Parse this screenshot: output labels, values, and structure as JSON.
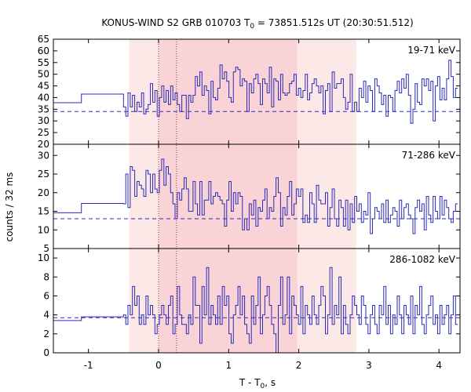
{
  "chart_data": {
    "type": "line",
    "title": {
      "prefix": "KONUS-WIND S2 GRB 010703 T",
      "sub": "0",
      "suffix": " = 73851.512s UT (20:30:51.512)"
    },
    "xlabel": {
      "prefix": "T - T",
      "sub": "0",
      "suffix": ", s"
    },
    "ylabel": "counts / 32 ms",
    "xlim": [
      -1.5,
      4.3
    ],
    "xticks": [
      -1,
      0,
      1,
      2,
      3,
      4
    ],
    "xtick_labels": [
      "-1",
      "0",
      "1",
      "2",
      "3",
      "4"
    ],
    "shaded_intervals": [
      {
        "x0": -0.42,
        "x1": 2.82,
        "color": "#fde8e8"
      },
      {
        "x0": 0.0,
        "x1": 1.98,
        "color": "#f9d3d6"
      }
    ],
    "vlines": [
      0.0,
      0.256
    ],
    "colors": {
      "series": "#2b2bb8",
      "background_line": "#2b2bb8",
      "vline": "#a04040"
    },
    "panels": [
      {
        "label": "19-71 keV",
        "ylim": [
          20,
          65
        ],
        "yticks": [
          20,
          25,
          30,
          35,
          40,
          45,
          50,
          55,
          60,
          65
        ],
        "background": 34,
        "preburst": [
          {
            "x0": -1.5,
            "x1": -1.1,
            "y": 37.8
          },
          {
            "x0": -1.1,
            "x1": -0.5,
            "y": 41.5
          }
        ],
        "bin": 0.032,
        "t_start": -0.5,
        "values": [
          36,
          32,
          42,
          36,
          41,
          34,
          38,
          36,
          42,
          33,
          35,
          37,
          46,
          38,
          43,
          32,
          40,
          45,
          38,
          43,
          37,
          45,
          39,
          42,
          37,
          34,
          41,
          41,
          31,
          41,
          38,
          41,
          49,
          45,
          51,
          41,
          45,
          43,
          33,
          47,
          40,
          39,
          44,
          54,
          48,
          51,
          47,
          40,
          38,
          51,
          53,
          52,
          45,
          48,
          47,
          34,
          46,
          42,
          48,
          50,
          46,
          37,
          48,
          46,
          42,
          53,
          36,
          48,
          47,
          39,
          50,
          42,
          41,
          42,
          46,
          47,
          50,
          41,
          44,
          40,
          43,
          50,
          39,
          42,
          46,
          48,
          45,
          42,
          45,
          33,
          43,
          46,
          34,
          51,
          44,
          46,
          46,
          48,
          40,
          35,
          38,
          50,
          34,
          38,
          34,
          44,
          40,
          47,
          38,
          45,
          43,
          34,
          48,
          45,
          42,
          37,
          41,
          32,
          41,
          40,
          34,
          43,
          47,
          42,
          48,
          44,
          50,
          41,
          29,
          35,
          46,
          38,
          37,
          48,
          45,
          48,
          43,
          47,
          30,
          45,
          49,
          39,
          44,
          39,
          48,
          56,
          49,
          40,
          44
        ]
      },
      {
        "label": "71-286 keV",
        "ylim": [
          5,
          33
        ],
        "yticks": [
          5,
          10,
          15,
          20,
          25,
          30
        ],
        "background": 13,
        "preburst": [
          {
            "x0": -1.5,
            "x1": -1.1,
            "y": 14.6
          },
          {
            "x0": -1.1,
            "x1": -0.5,
            "y": 17.1
          }
        ],
        "bin": 0.032,
        "t_start": -0.5,
        "values": [
          17,
          25,
          16,
          27,
          26,
          19,
          23,
          22,
          21,
          19,
          26,
          25,
          20,
          25,
          21,
          20,
          26,
          29,
          22,
          27,
          25,
          20,
          17,
          13,
          20,
          18,
          21,
          24,
          21,
          15,
          15,
          23,
          17,
          14,
          23,
          14,
          18,
          18,
          23,
          17,
          19,
          20,
          19,
          18,
          17,
          11,
          18,
          23,
          15,
          20,
          17,
          20,
          19,
          10,
          13,
          10,
          17,
          14,
          18,
          11,
          16,
          15,
          18,
          21,
          13,
          16,
          15,
          19,
          24,
          20,
          11,
          16,
          14,
          19,
          23,
          14,
          17,
          21,
          19,
          21,
          12,
          14,
          12,
          20,
          17,
          12,
          22,
          18,
          17,
          17,
          20,
          11,
          16,
          21,
          13,
          11,
          18,
          16,
          11,
          18,
          10,
          17,
          12,
          19,
          15,
          17,
          12,
          15,
          14,
          20,
          9,
          13,
          16,
          15,
          13,
          17,
          12,
          18,
          12,
          14,
          16,
          15,
          11,
          18,
          13,
          16,
          17,
          14,
          13,
          9,
          16,
          18,
          15,
          17,
          10,
          19,
          14,
          12,
          19,
          15,
          13,
          19,
          14,
          18,
          16,
          13,
          12,
          15,
          17
        ]
      },
      {
        "label": "286-1082 keV",
        "ylim": [
          0,
          11
        ],
        "yticks": [
          0,
          2,
          4,
          6,
          8,
          10
        ],
        "background": 3.7,
        "preburst": [
          {
            "x0": -1.5,
            "x1": -1.1,
            "y": 3.4
          },
          {
            "x0": -1.1,
            "x1": -0.5,
            "y": 3.8
          }
        ],
        "bin": 0.032,
        "t_start": -0.5,
        "values": [
          4,
          3,
          5,
          4,
          7,
          5,
          6,
          3,
          4,
          3,
          6,
          4,
          5,
          4,
          2,
          3,
          4,
          5,
          4,
          3,
          5,
          6,
          2,
          3,
          7,
          4,
          3,
          3,
          2,
          4,
          3,
          8,
          5,
          5,
          1,
          7,
          4,
          9,
          3,
          5,
          4,
          3,
          6,
          3,
          7,
          5,
          6,
          2,
          1,
          4,
          5,
          7,
          4,
          6,
          3,
          2,
          1,
          6,
          3,
          5,
          8,
          2,
          4,
          6,
          7,
          5,
          3,
          2,
          0,
          5,
          8,
          3,
          4,
          8,
          2,
          6,
          5,
          4,
          3,
          7,
          2,
          5,
          4,
          3,
          6,
          4,
          3,
          5,
          7,
          6,
          2,
          4,
          9,
          3,
          5,
          4,
          8,
          2,
          5,
          3,
          2,
          4,
          6,
          5,
          4,
          3,
          6,
          5,
          3,
          2,
          4,
          5,
          3,
          2,
          5,
          4,
          7,
          3,
          5,
          2,
          4,
          3,
          6,
          4,
          2,
          5,
          4,
          3,
          6,
          2,
          5,
          4,
          7,
          3,
          2,
          4,
          5,
          6,
          3,
          4,
          2,
          5,
          3,
          4,
          5,
          2,
          4,
          6,
          3
        ]
      }
    ]
  }
}
